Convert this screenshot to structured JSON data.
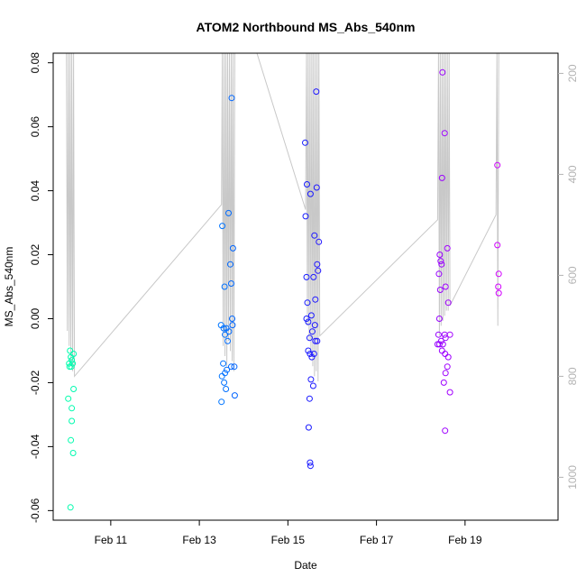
{
  "chart_data": {
    "type": "scatter",
    "title": "ATOM2 Northbound MS_Abs_540nm",
    "xlabel": "Date",
    "ylabel": "MS_Abs_540nm",
    "x_ticks": [
      "Feb 11",
      "Feb 13",
      "Feb 15",
      "Feb 17",
      "Feb 19"
    ],
    "x_tick_days": [
      11,
      13,
      15,
      17,
      19
    ],
    "xlim": [
      9.7,
      21.1
    ],
    "ylim": [
      -0.063,
      0.083
    ],
    "y_ticks": [
      -0.06,
      -0.04,
      -0.02,
      0.0,
      0.02,
      0.04,
      0.06,
      0.08
    ],
    "y_tick_labels": [
      "-0.06",
      "-0.04",
      "-0.02",
      "0.00",
      "0.02",
      "0.04",
      "0.06",
      "0.08"
    ],
    "right_axis": {
      "ylim": [
        1085,
        160
      ],
      "ticks": [
        200,
        400,
        600,
        800,
        1000
      ],
      "tick_labels": [
        "200",
        "400",
        "600",
        "800",
        "1000"
      ],
      "color": "#b3b3b3"
    },
    "depth_line_color": "#c8c8c8",
    "color_scale": [
      "#00ffaa",
      "#00b3ff",
      "#0022ff",
      "#6a00ff",
      "#d400ff"
    ],
    "points": [
      [
        10.08,
        -0.01
      ],
      [
        10.1,
        -0.012
      ],
      [
        10.12,
        -0.013
      ],
      [
        10.06,
        -0.014
      ],
      [
        10.14,
        -0.014
      ],
      [
        10.07,
        -0.015
      ],
      [
        10.11,
        -0.015
      ],
      [
        10.16,
        -0.011
      ],
      [
        10.16,
        -0.022
      ],
      [
        10.04,
        -0.025
      ],
      [
        10.12,
        -0.028
      ],
      [
        10.12,
        -0.032
      ],
      [
        10.1,
        -0.038
      ],
      [
        10.15,
        -0.042
      ],
      [
        10.09,
        -0.059
      ],
      [
        13.49,
        -0.002
      ],
      [
        13.55,
        -0.003
      ],
      [
        13.61,
        -0.003
      ],
      [
        13.67,
        -0.004
      ],
      [
        13.58,
        -0.005
      ],
      [
        13.64,
        -0.007
      ],
      [
        13.52,
        0.029
      ],
      [
        13.66,
        0.033
      ],
      [
        13.7,
        0.017
      ],
      [
        13.73,
        0.069
      ],
      [
        13.72,
        0.011
      ],
      [
        13.57,
        0.01
      ],
      [
        13.76,
        0.022
      ],
      [
        13.74,
        0.0
      ],
      [
        13.75,
        -0.002
      ],
      [
        13.54,
        -0.014
      ],
      [
        13.51,
        -0.018
      ],
      [
        13.62,
        -0.016
      ],
      [
        13.58,
        -0.017
      ],
      [
        13.72,
        -0.015
      ],
      [
        13.79,
        -0.015
      ],
      [
        13.56,
        -0.02
      ],
      [
        13.6,
        -0.022
      ],
      [
        13.5,
        -0.026
      ],
      [
        13.8,
        -0.024
      ],
      [
        15.39,
        0.055
      ],
      [
        15.43,
        0.042
      ],
      [
        15.51,
        0.039
      ],
      [
        15.64,
        0.071
      ],
      [
        15.65,
        0.041
      ],
      [
        15.4,
        0.032
      ],
      [
        15.6,
        0.026
      ],
      [
        15.7,
        0.024
      ],
      [
        15.42,
        0.013
      ],
      [
        15.58,
        0.013
      ],
      [
        15.66,
        0.017
      ],
      [
        15.68,
        0.015
      ],
      [
        15.44,
        0.005
      ],
      [
        15.62,
        0.006
      ],
      [
        15.53,
        0.001
      ],
      [
        15.46,
        -0.001
      ],
      [
        15.42,
        0.0
      ],
      [
        15.55,
        -0.004
      ],
      [
        15.61,
        -0.002
      ],
      [
        15.49,
        -0.006
      ],
      [
        15.62,
        -0.007
      ],
      [
        15.66,
        -0.007
      ],
      [
        15.46,
        -0.01
      ],
      [
        15.5,
        -0.011
      ],
      [
        15.54,
        -0.012
      ],
      [
        15.59,
        -0.011
      ],
      [
        15.52,
        -0.019
      ],
      [
        15.57,
        -0.021
      ],
      [
        15.49,
        -0.025
      ],
      [
        15.47,
        -0.034
      ],
      [
        15.5,
        -0.045
      ],
      [
        15.51,
        -0.046
      ],
      [
        18.49,
        0.077
      ],
      [
        18.54,
        0.058
      ],
      [
        18.48,
        0.044
      ],
      [
        18.43,
        0.02
      ],
      [
        18.45,
        0.018
      ],
      [
        18.47,
        0.017
      ],
      [
        18.41,
        0.014
      ],
      [
        18.6,
        0.022
      ],
      [
        18.56,
        0.01
      ],
      [
        18.44,
        0.009
      ],
      [
        18.62,
        0.005
      ],
      [
        18.42,
        0.0
      ],
      [
        18.4,
        -0.005
      ],
      [
        18.54,
        -0.005
      ],
      [
        18.56,
        -0.006
      ],
      [
        18.66,
        -0.005
      ],
      [
        18.46,
        -0.007
      ],
      [
        18.5,
        -0.008
      ],
      [
        18.38,
        -0.008
      ],
      [
        18.42,
        -0.008
      ],
      [
        18.48,
        -0.01
      ],
      [
        18.55,
        -0.011
      ],
      [
        18.62,
        -0.012
      ],
      [
        18.6,
        -0.015
      ],
      [
        18.56,
        -0.017
      ],
      [
        18.52,
        -0.02
      ],
      [
        18.66,
        -0.023
      ],
      [
        18.55,
        -0.035
      ],
      [
        19.73,
        0.048
      ],
      [
        19.73,
        0.023
      ],
      [
        19.76,
        0.014
      ],
      [
        19.75,
        0.01
      ],
      [
        19.76,
        0.008
      ]
    ],
    "depth_series": [
      [
        10.0,
        160
      ],
      [
        10.02,
        710
      ],
      [
        10.04,
        160
      ],
      [
        10.06,
        740
      ],
      [
        10.08,
        160
      ],
      [
        10.1,
        770
      ],
      [
        10.12,
        160
      ],
      [
        10.14,
        790
      ],
      [
        10.16,
        160
      ],
      [
        10.18,
        800
      ],
      [
        13.5,
        460
      ],
      [
        13.52,
        160
      ],
      [
        13.54,
        740
      ],
      [
        13.56,
        160
      ],
      [
        13.58,
        760
      ],
      [
        13.6,
        160
      ],
      [
        13.62,
        780
      ],
      [
        13.64,
        160
      ],
      [
        13.66,
        730
      ],
      [
        13.68,
        160
      ],
      [
        13.7,
        750
      ],
      [
        13.72,
        160
      ],
      [
        13.74,
        770
      ],
      [
        13.76,
        160
      ],
      [
        13.78,
        790
      ],
      [
        13.8,
        160
      ],
      [
        14.3,
        160
      ],
      [
        15.4,
        470
      ],
      [
        15.42,
        160
      ],
      [
        15.44,
        700
      ],
      [
        15.46,
        160
      ],
      [
        15.48,
        730
      ],
      [
        15.5,
        160
      ],
      [
        15.52,
        760
      ],
      [
        15.54,
        160
      ],
      [
        15.56,
        780
      ],
      [
        15.58,
        160
      ],
      [
        15.6,
        800
      ],
      [
        15.62,
        160
      ],
      [
        15.64,
        790
      ],
      [
        15.66,
        160
      ],
      [
        15.68,
        810
      ],
      [
        15.7,
        160
      ],
      [
        15.72,
        720
      ],
      [
        18.38,
        490
      ],
      [
        18.4,
        160
      ],
      [
        18.42,
        720
      ],
      [
        18.44,
        160
      ],
      [
        18.46,
        700
      ],
      [
        18.48,
        160
      ],
      [
        18.5,
        690
      ],
      [
        18.52,
        160
      ],
      [
        18.54,
        680
      ],
      [
        18.56,
        160
      ],
      [
        18.58,
        670
      ],
      [
        18.6,
        160
      ],
      [
        18.62,
        670
      ],
      [
        18.64,
        160
      ],
      [
        18.66,
        660
      ],
      [
        19.7,
        480
      ],
      [
        19.72,
        160
      ],
      [
        19.74,
        700
      ],
      [
        19.76,
        160
      ]
    ]
  }
}
